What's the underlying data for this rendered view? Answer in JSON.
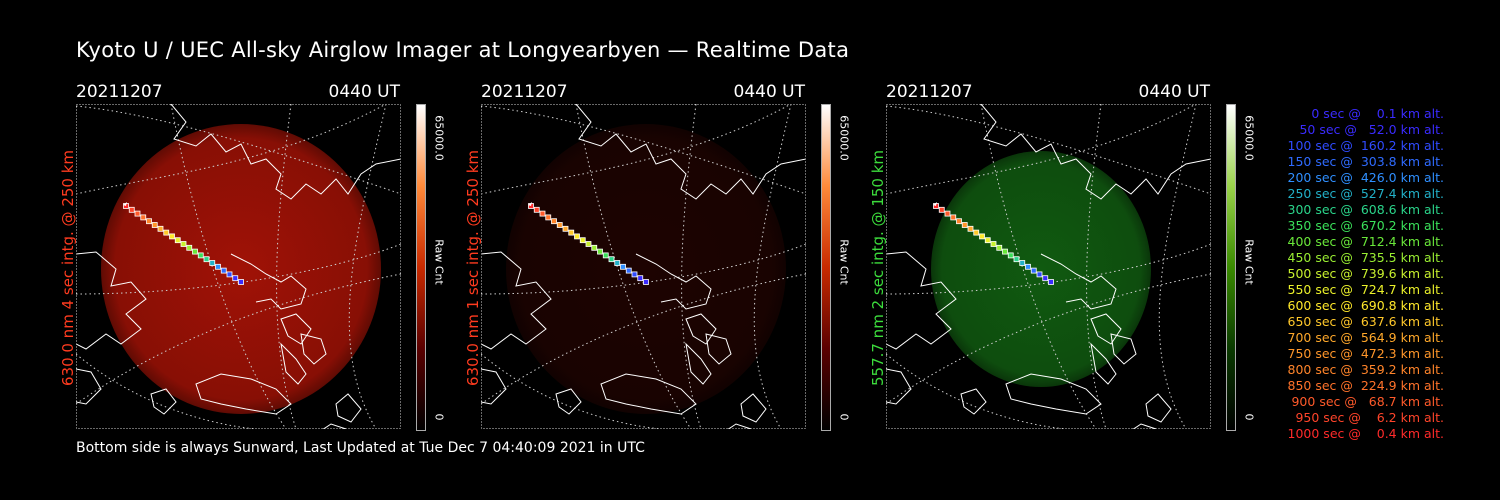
{
  "title": "Kyoto U / UEC All-sky Airglow Imager at Longyearbyen — Realtime Data",
  "footer": "Bottom side is always Sunward, Last Updated at Tue Dec  7 04:40:09 2021 in UTC",
  "panels": [
    {
      "date": "20211207",
      "time": "0440 UT",
      "side_label": "630.0 nm 4 sec intg. @ 250 km",
      "side_color": "#ff3b1f",
      "colorbar_max": "65000.0",
      "colorbar_unit": "Raw Cnt",
      "colorbar_min": "0",
      "colormap": "red",
      "disk_brightness": 0.55
    },
    {
      "date": "20211207",
      "time": "0440 UT",
      "side_label": "630.0 nm 1 sec intg. @ 250 km",
      "side_color": "#ff3b1f",
      "colorbar_max": "65000.0",
      "colorbar_unit": "Raw Cnt",
      "colorbar_min": "0",
      "colormap": "red",
      "disk_brightness": 0.1
    },
    {
      "date": "20211207",
      "time": "0440 UT",
      "side_label": "557.7 nm 2 sec intg. @ 150 km",
      "side_color": "#3cdc3c",
      "colorbar_max": "65000.0",
      "colorbar_unit": "Raw Cnt",
      "colorbar_min": "0",
      "colormap": "green",
      "disk_brightness": 0.45
    }
  ],
  "legend": [
    {
      "text": "0 sec @    0.1 km alt.",
      "color": "#3a2bff"
    },
    {
      "text": "50 sec @   52.0 km alt.",
      "color": "#3a2bff"
    },
    {
      "text": "100 sec @  160.2 km alt.",
      "color": "#2f4bff"
    },
    {
      "text": "150 sec @  303.8 km alt.",
      "color": "#2f6bff"
    },
    {
      "text": "200 sec @  426.0 km alt.",
      "color": "#2f8fff"
    },
    {
      "text": "250 sec @  527.4 km alt.",
      "color": "#22b0c8"
    },
    {
      "text": "300 sec @  608.6 km alt.",
      "color": "#2ad48a"
    },
    {
      "text": "350 sec @  670.2 km alt.",
      "color": "#3ae05a"
    },
    {
      "text": "400 sec @  712.4 km alt.",
      "color": "#6ae83a"
    },
    {
      "text": "450 sec @  735.5 km alt.",
      "color": "#9aee32"
    },
    {
      "text": "500 sec @  739.6 km alt.",
      "color": "#c8f02e"
    },
    {
      "text": "550 sec @  724.7 km alt.",
      "color": "#eaf02a"
    },
    {
      "text": "600 sec @  690.8 km alt.",
      "color": "#ffe82a"
    },
    {
      "text": "650 sec @  637.6 km alt.",
      "color": "#ffc82a"
    },
    {
      "text": "700 sec @  564.9 km alt.",
      "color": "#ffa82a"
    },
    {
      "text": "750 sec @  472.3 km alt.",
      "color": "#ff962a"
    },
    {
      "text": "800 sec @  359.2 km alt.",
      "color": "#ff842a"
    },
    {
      "text": "850 sec @  224.9 km alt.",
      "color": "#ff722a"
    },
    {
      "text": "900 sec @   68.7 km alt.",
      "color": "#ff5a2a"
    },
    {
      "text": "950 sec @    6.2 km alt.",
      "color": "#ff442a"
    },
    {
      "text": "1000 sec @    0.4 km alt.",
      "color": "#ff2a2a"
    }
  ]
}
